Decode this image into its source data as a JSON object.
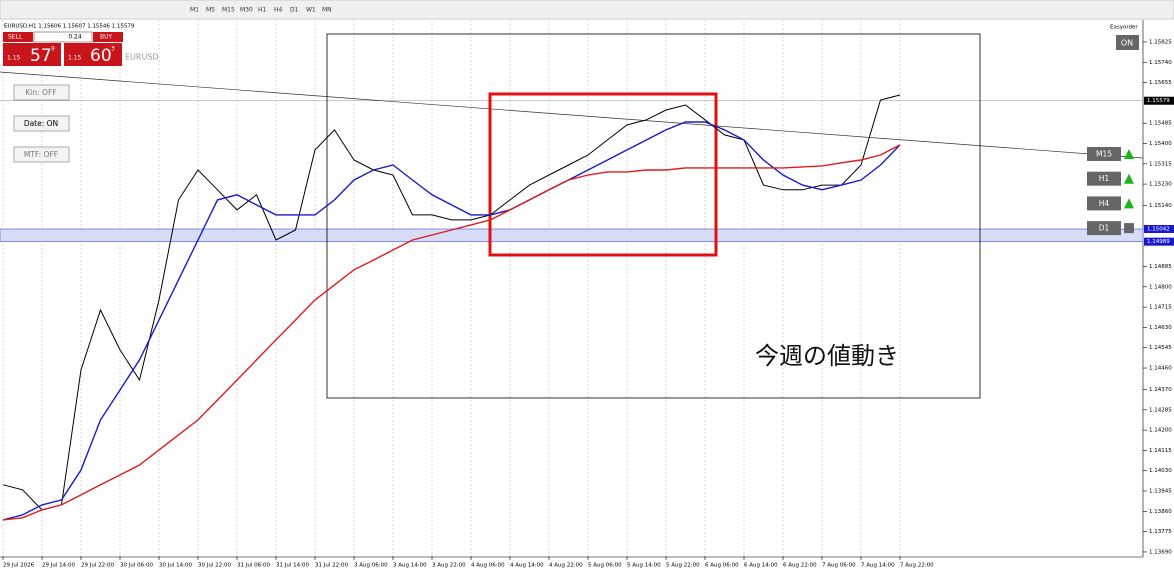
{
  "ui": {
    "toolbar": [
      "M1",
      "M5",
      "M15",
      "M30",
      "H1",
      "H4",
      "D1",
      "W1",
      "MN"
    ],
    "symbol_info": "EURUSD,H1 1.15606 1.15607 1.15546 1.15579",
    "trade_panel": {
      "sell": "SELL",
      "lot": "0.24",
      "buy": "BUY",
      "sell_prefix": "1.15",
      "sell_big": "57",
      "sell_sup": "9",
      "buy_prefix": "1.15",
      "buy_big": "60",
      "buy_sup": "3",
      "symbol": "EURUSD"
    },
    "buttons": [
      "Kin: OFF",
      "Date: ON",
      "MTF: OFF"
    ],
    "easyorder": "Easyorder",
    "on": "ON",
    "timeframes": [
      "M15",
      "H1",
      "H4",
      "D1"
    ]
  },
  "chart_data": {
    "type": "line",
    "annotation": "今週の値動き",
    "grid": true,
    "categories": [
      "29 Jul 2026",
      null,
      "29 Jul 14:00",
      null,
      "29 Jul 22:00",
      null,
      "30 Jul 06:00",
      null,
      "30 Jul 14:00",
      null,
      "30 Jul 22:00",
      null,
      "31 Jul 06:00",
      null,
      "31 Jul 14:00",
      null,
      "31 Jul 22:00",
      null,
      "3 Aug 06:00",
      null,
      "3 Aug 14:00",
      null,
      "3 Aug 22:00",
      null,
      "4 Aug 06:00",
      null,
      "4 Aug 14:00",
      null,
      "4 Aug 22:00",
      null,
      "5 Aug 06:00",
      null,
      "5 Aug 14:00",
      null,
      "5 Aug 22:00",
      null,
      "6 Aug 06:00",
      null,
      "6 Aug 14:00",
      null,
      "6 Aug 22:00",
      null,
      "7 Aug 06:00",
      null,
      "7 Aug 14:00",
      null,
      "7 Aug 22:00"
    ],
    "series": [
      {
        "color": "#000000",
        "values": [
          1.13971,
          1.1395,
          1.13866,
          1.13887,
          1.14452,
          1.14703,
          1.14536,
          1.1441,
          1.14745,
          1.15164,
          1.15289,
          1.15206,
          1.15122,
          1.15185,
          1.14996,
          1.15038,
          1.15373,
          1.15457,
          1.15331,
          1.15289,
          1.15268,
          1.15101,
          1.15101,
          1.1508,
          1.1508,
          1.15101,
          1.15164,
          1.15226,
          1.15268,
          1.1531,
          1.15352,
          1.15415,
          1.15478,
          1.15499,
          1.1554,
          1.15561,
          1.15499,
          1.15436,
          1.15415,
          1.15226,
          1.15206,
          1.15206,
          1.15226,
          1.15226,
          1.1531,
          1.15582,
          1.15603
        ]
      },
      {
        "color": "#1a1acc",
        "values": [
          1.13824,
          1.13845,
          1.13887,
          1.13908,
          1.14033,
          1.14243,
          1.14368,
          1.14494,
          1.14661,
          1.14829,
          1.14996,
          1.15164,
          1.15185,
          1.15143,
          1.15101,
          1.15101,
          1.15101,
          1.15164,
          1.15247,
          1.15289,
          1.1531,
          1.15247,
          1.15185,
          1.15143,
          1.15101,
          1.15101,
          1.15122,
          1.15164,
          1.15206,
          1.15247,
          1.15289,
          1.15331,
          1.15373,
          1.15415,
          1.15457,
          1.1549,
          1.1549,
          1.15457,
          1.15415,
          1.15331,
          1.15268,
          1.15226,
          1.15206,
          1.15226,
          1.15247,
          1.1531,
          1.15394
        ]
      },
      {
        "color": "#dd1c1c",
        "values": [
          1.13824,
          1.13833,
          1.13866,
          1.13887,
          1.13929,
          1.13971,
          1.14012,
          1.14054,
          1.14117,
          1.1418,
          1.14243,
          1.14326,
          1.1441,
          1.14494,
          1.14578,
          1.14661,
          1.14745,
          1.14808,
          1.14871,
          1.14912,
          1.14954,
          1.14996,
          1.15017,
          1.15038,
          1.15059,
          1.1508,
          1.15122,
          1.15164,
          1.15206,
          1.15247,
          1.15268,
          1.15281,
          1.15281,
          1.15289,
          1.15289,
          1.15298,
          1.15298,
          1.15298,
          1.15298,
          1.15298,
          1.15298,
          1.15302,
          1.15306,
          1.15319,
          1.15331,
          1.15352,
          1.15394
        ]
      }
    ],
    "ylim": [
      1.13673,
      1.15917
    ],
    "yticks": [
      1.15825,
      {
        "value": 1.1574,
        "label": "1.15740"
      },
      1.15655,
      1.15485,
      {
        "value": 1.154,
        "label": "1.15400"
      },
      1.15315,
      {
        "value": 1.1523,
        "label": "1.15230"
      },
      {
        "value": 1.1514,
        "label": "1.15140"
      },
      1.14885,
      {
        "value": 1.148,
        "label": "1.14800"
      },
      1.14715,
      {
        "value": 1.1463,
        "label": "1.14630"
      },
      1.14545,
      {
        "value": 1.1446,
        "label": "1.14460"
      },
      {
        "value": 1.1437,
        "label": "1.14370"
      },
      1.14285,
      {
        "value": 1.142,
        "label": "1.14200"
      },
      1.14115,
      {
        "value": 1.1403,
        "label": "1.14030"
      },
      1.13945,
      {
        "value": 1.1386,
        "label": "1.13860"
      },
      1.13775,
      {
        "value": 1.1369,
        "label": "1.13690"
      }
    ],
    "levels": [
      1.15579,
      1.15042,
      1.14989
    ]
  }
}
